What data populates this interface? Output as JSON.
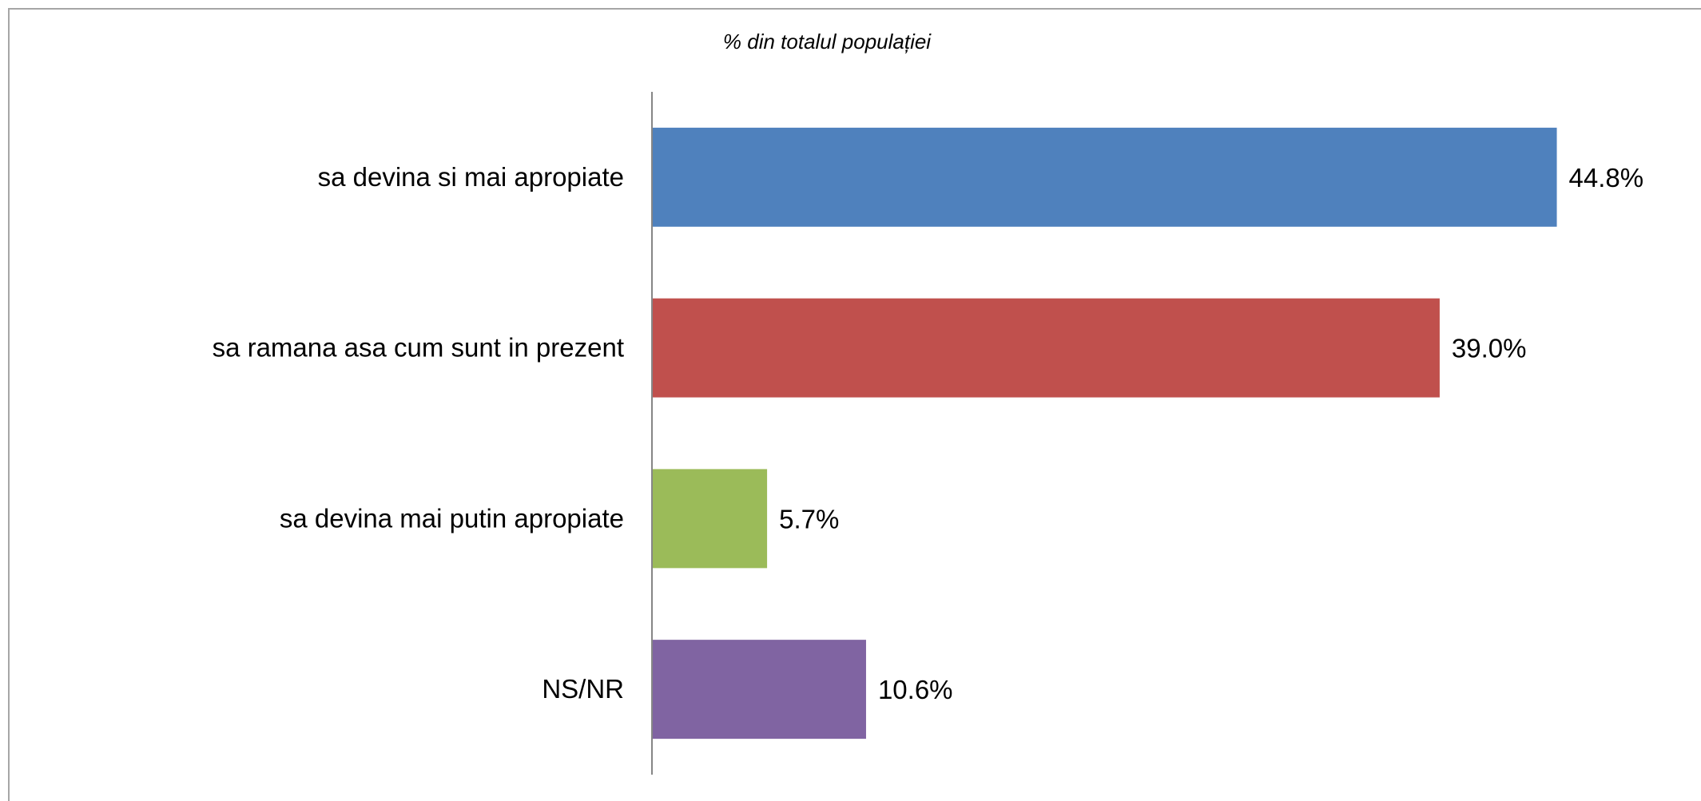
{
  "chart_data": {
    "type": "bar",
    "orientation": "horizontal",
    "subtitle": "% din totalul populației",
    "categories": [
      "sa devina si mai apropiate",
      "sa ramana asa cum sunt in prezent",
      "sa devina mai putin apropiate",
      "NS/NR"
    ],
    "values": [
      44.8,
      39.0,
      5.7,
      10.6
    ],
    "data_labels": [
      "44.8%",
      "39.0%",
      "5.7%",
      "10.6%"
    ],
    "colors": [
      "#4f81bd",
      "#c0504d",
      "#9bbb59",
      "#8064a2"
    ],
    "xlim": [
      0,
      45
    ],
    "grid": false,
    "legend": "none"
  }
}
